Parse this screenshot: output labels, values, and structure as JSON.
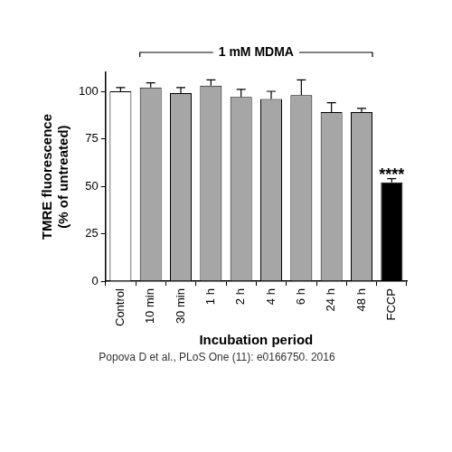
{
  "chart_data": {
    "type": "bar",
    "categories": [
      "Control",
      "10 min",
      "30 min",
      "1 h",
      "2 h",
      "4 h",
      "6 h",
      "24 h",
      "48 h",
      "FCCP"
    ],
    "values": [
      100,
      102,
      99,
      103,
      97,
      96,
      98,
      89,
      89,
      52
    ],
    "errors": [
      2,
      2.5,
      3,
      3,
      4,
      4,
      8,
      5,
      2,
      2
    ],
    "colors": [
      "#ffffff",
      "#a6a6a6",
      "#a6a6a6",
      "#a6a6a6",
      "#a6a6a6",
      "#a6a6a6",
      "#a6a6a6",
      "#a6a6a6",
      "#a6a6a6",
      "#000000"
    ],
    "x_label": "Incubation period",
    "y_label": [
      "TMRE fluorescence",
      "(% of untreated)"
    ],
    "ylim": [
      0,
      110
    ],
    "yticks": [
      0,
      25,
      50,
      75,
      100
    ],
    "grid": false,
    "annotations": [
      {
        "text": "1 mM MDMA",
        "from": "10 min",
        "to": "48 h"
      },
      {
        "text": "****",
        "category": "FCCP"
      }
    ],
    "source": "Popova D et al., PLoS One (11): e0166750. 2016"
  }
}
